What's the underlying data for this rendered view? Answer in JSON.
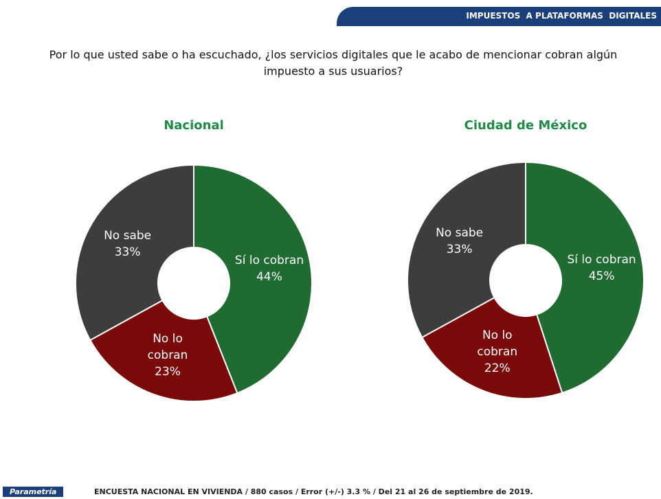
{
  "header": {
    "section": "IMPUESTOS  A PLATAFORMAS  DIGITALES"
  },
  "question": "Por lo que usted sabe o ha escuchado, ¿los servicios digitales que le acabo de mencionar cobran algún impuesto a sus usuarios?",
  "footer": {
    "brand": "Parametría",
    "note": "ENCUESTA NACIONAL EN VIVIENDA / 880 casos / Error (+/-) 3.3 % / Del 21 al 26 de septiembre de 2019."
  },
  "chart_data": [
    {
      "type": "pie",
      "title": "Nacional",
      "categories": [
        "Sí lo cobran",
        "No lo cobran",
        "No sabe"
      ],
      "values": [
        44,
        23,
        33
      ],
      "value_labels": [
        "44%",
        "23%",
        "33%"
      ],
      "colors": [
        "#1f6b31",
        "#7a0a0a",
        "#3d3d3d"
      ]
    },
    {
      "type": "pie",
      "title": "Ciudad de México",
      "categories": [
        "Sí lo cobran",
        "No lo cobran",
        "No sabe"
      ],
      "values": [
        45,
        22,
        33
      ],
      "value_labels": [
        "45%",
        "22%",
        "33%"
      ],
      "colors": [
        "#1f6b31",
        "#7a0a0a",
        "#3d3d3d"
      ]
    }
  ]
}
